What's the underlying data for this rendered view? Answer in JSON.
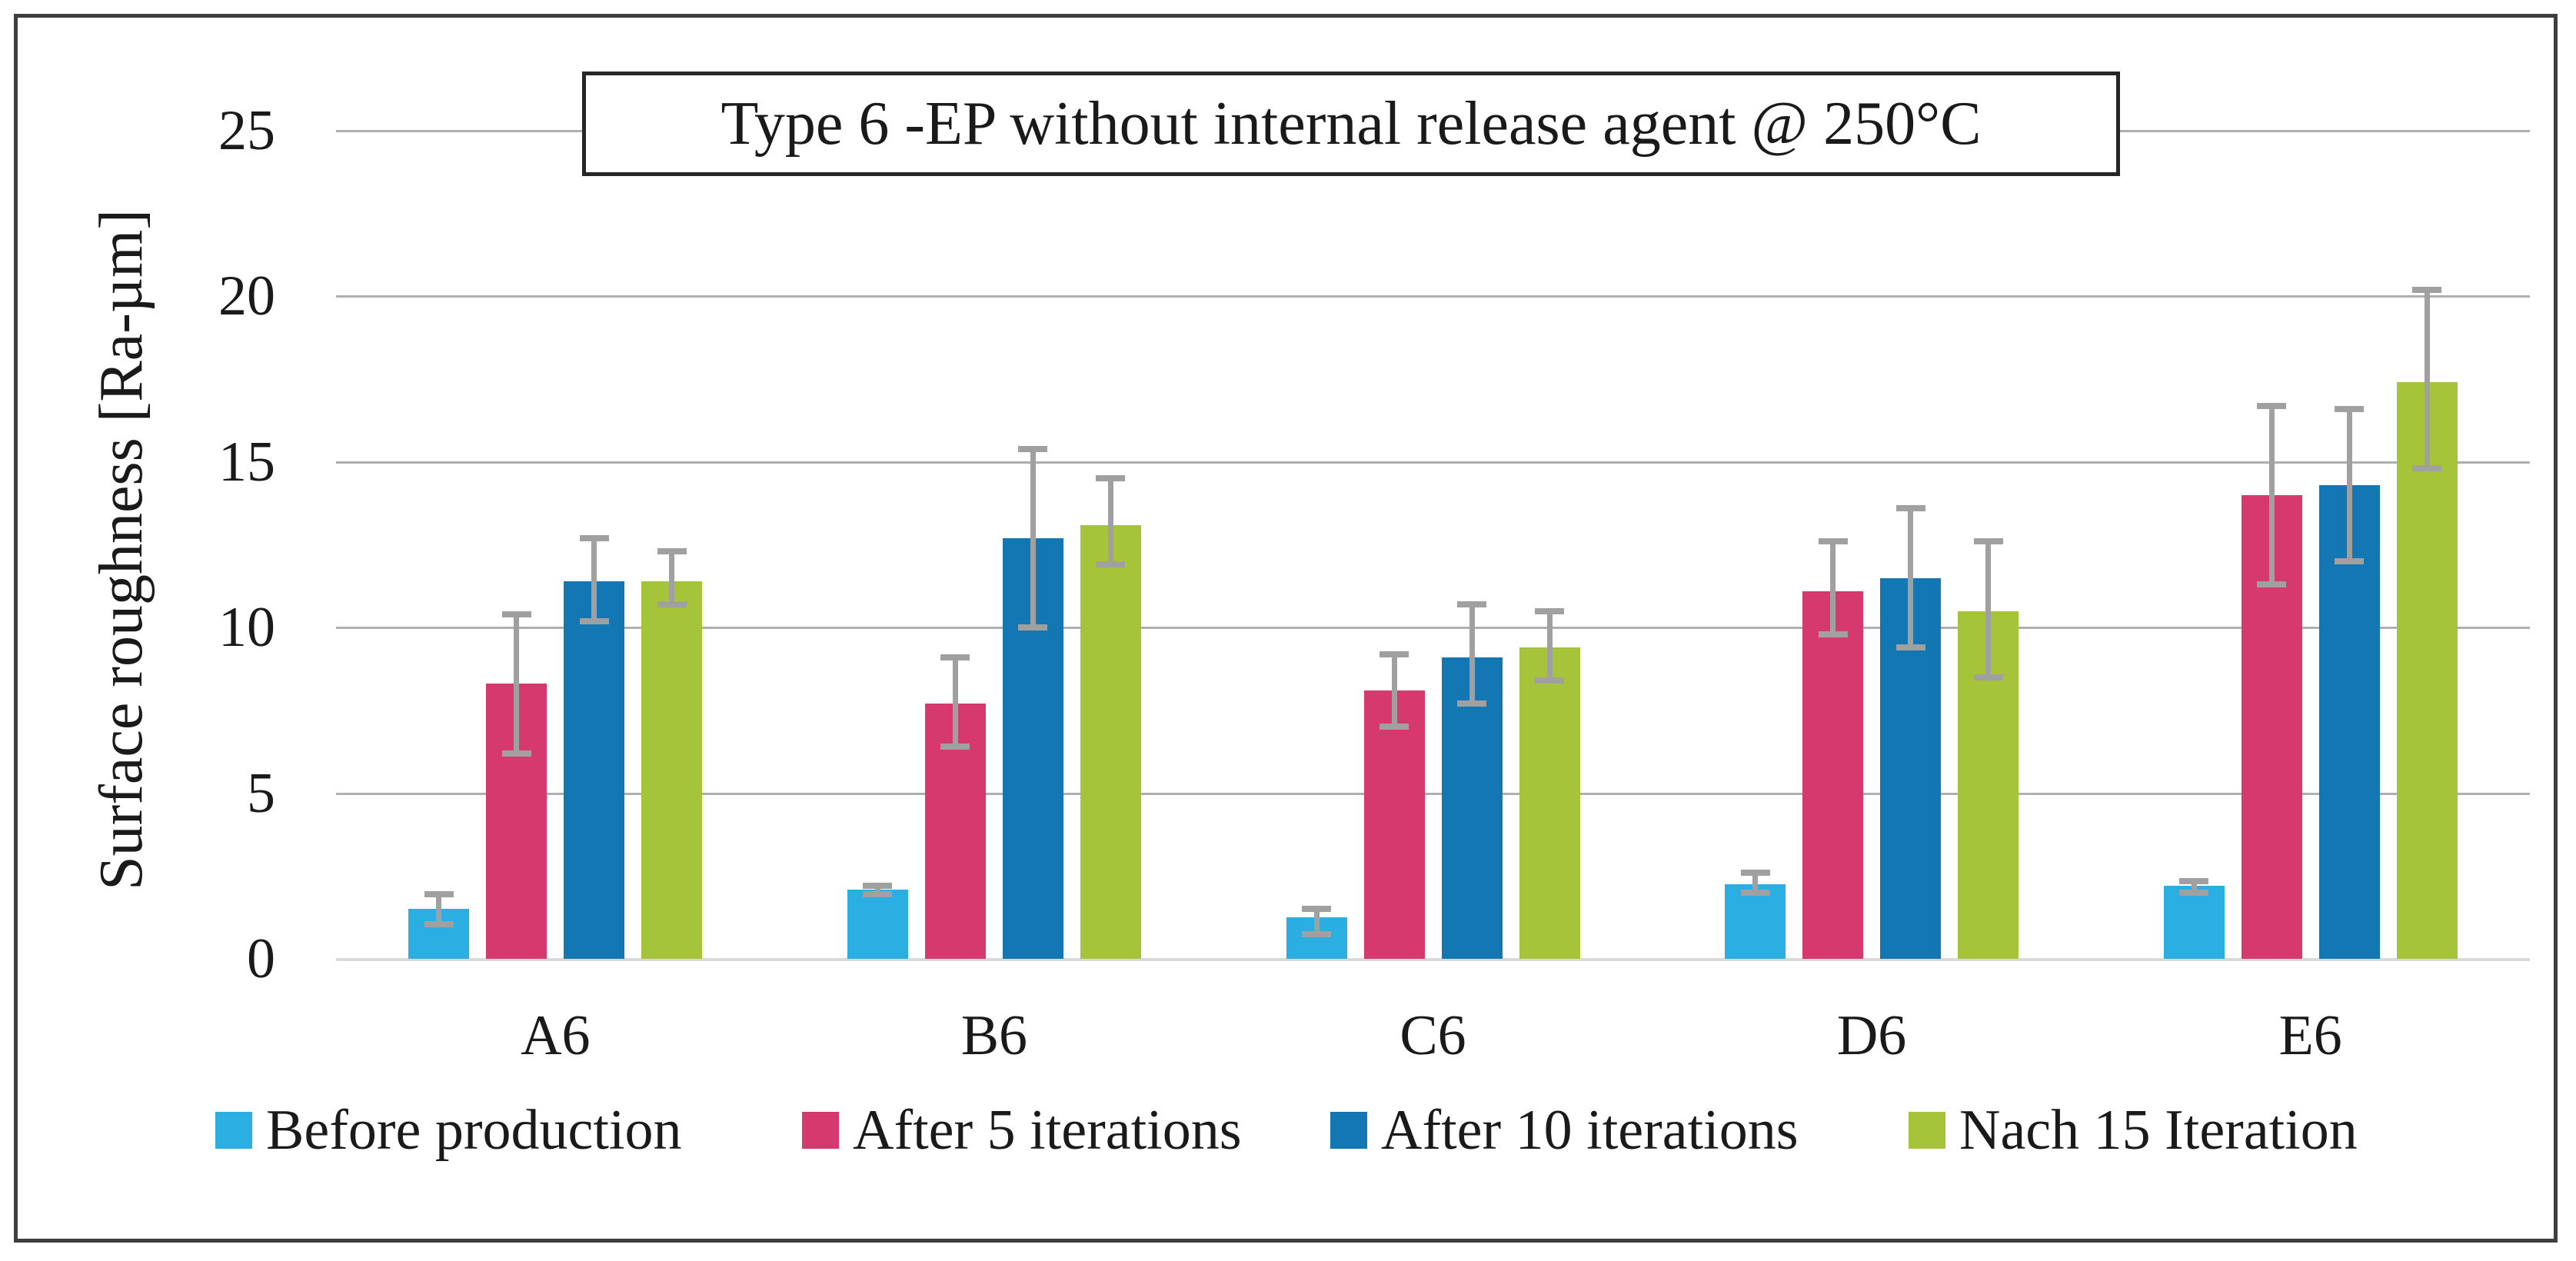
{
  "figure": {
    "background": "#ffffff",
    "border_color": "#3f3f3f"
  },
  "chart_data": {
    "type": "bar",
    "title": "Type 6 -EP without internal release agent @ 250°C",
    "ylabel": "Surface roughness [Ra-µm]",
    "xlabel": "",
    "ylim": [
      0,
      25
    ],
    "yticks": [
      0,
      5,
      10,
      15,
      20,
      25
    ],
    "grid": "horizontal-only",
    "legend_position": "bottom",
    "categories": [
      "A6",
      "B6",
      "C6",
      "D6",
      "E6"
    ],
    "series": [
      {
        "name": "Before production",
        "color": "#2bafe2",
        "values": [
          1.5,
          2.1,
          1.25,
          2.25,
          2.2
        ],
        "err_low": [
          1.05,
          1.95,
          0.75,
          2.0,
          2.0
        ],
        "err_high": [
          1.95,
          2.2,
          1.5,
          2.6,
          2.35
        ]
      },
      {
        "name": "After 5 iterations",
        "color": "#d5396e",
        "values": [
          8.3,
          7.7,
          8.1,
          11.1,
          14.0
        ],
        "err_low": [
          6.2,
          6.4,
          7.0,
          9.8,
          11.3
        ],
        "err_high": [
          10.4,
          9.1,
          9.2,
          12.6,
          16.7
        ]
      },
      {
        "name": "After 10 iterations",
        "color": "#1377b4",
        "values": [
          11.4,
          12.7,
          9.1,
          11.5,
          14.3
        ],
        "err_low": [
          10.2,
          10.0,
          7.7,
          9.4,
          12.0
        ],
        "err_high": [
          12.7,
          15.4,
          10.7,
          13.6,
          16.6
        ]
      },
      {
        "name": "Nach 15 Iteration",
        "color": "#a5c43a",
        "values": [
          11.4,
          13.1,
          9.4,
          10.5,
          17.4
        ],
        "err_low": [
          10.7,
          11.9,
          8.4,
          8.5,
          14.8
        ],
        "err_high": [
          12.3,
          14.5,
          10.5,
          12.6,
          20.2
        ]
      }
    ],
    "error_bar_color": "#a0a0a0",
    "gridline_color": "#afafaf",
    "baseline_color": "#d9d9d9",
    "text_color": "#1a1a1a"
  }
}
